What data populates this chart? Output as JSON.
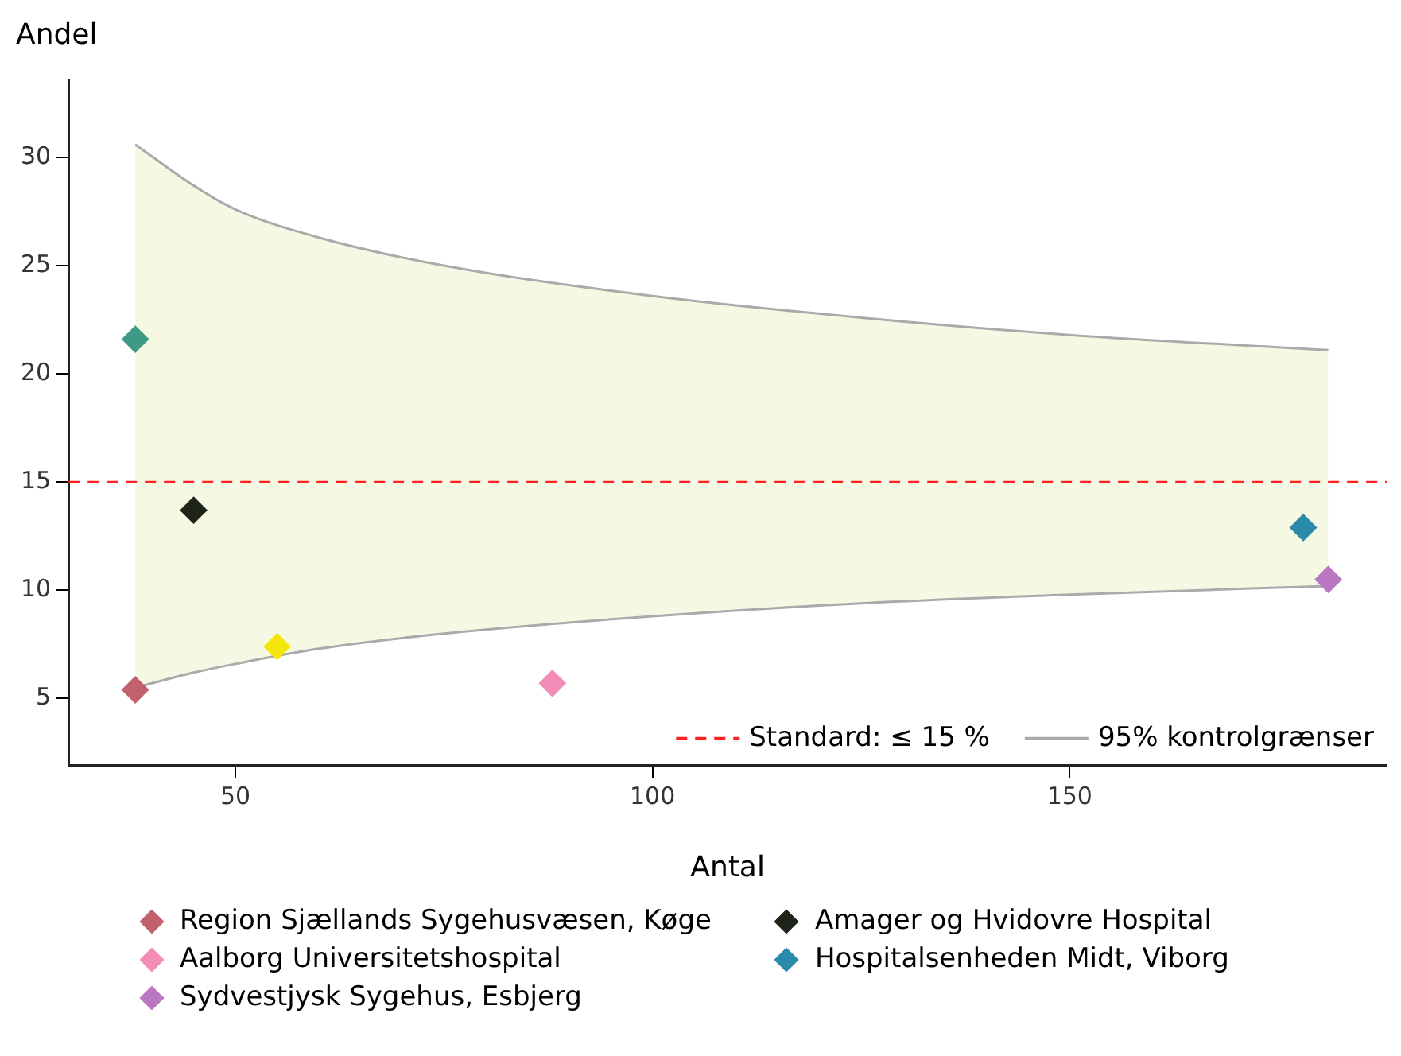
{
  "chart_data": {
    "type": "scatter",
    "xlabel": "Antal",
    "ylabel": "Andel",
    "xlim": [
      30,
      188
    ],
    "xticks": [
      50,
      100,
      150
    ],
    "ylim": [
      1.9,
      33.6
    ],
    "yticks": [
      5,
      10,
      15,
      20,
      25,
      30
    ],
    "grid": false,
    "legend": "bottom",
    "marker": "diamond",
    "ref_lines": [
      {
        "axis": "y",
        "value": 15,
        "label": "Standard: ≤ 15 %",
        "color": "#ff2020",
        "line_style": "dashed"
      }
    ],
    "series": [
      {
        "type": "line",
        "name": "95% kontrolgrænser",
        "color": "#aaaaaa",
        "marker": "none",
        "x": [
          38,
          45,
          50,
          60,
          75,
          100,
          125,
          150,
          181
        ],
        "values": [
          30.6,
          28.7,
          27.6,
          26.3,
          25.0,
          23.6,
          22.6,
          21.8,
          21.1
        ],
        "upper": [
          30.6,
          28.7,
          27.6,
          26.3,
          25.0,
          23.6,
          22.6,
          21.8,
          21.1
        ],
        "lower": [
          5.5,
          6.2,
          6.6,
          7.3,
          8.0,
          8.8,
          9.4,
          9.8,
          10.2
        ]
      },
      {
        "type": "line",
        "color": "#aaaaaa",
        "marker": "none",
        "x": [
          38,
          45,
          50,
          60,
          75,
          100,
          125,
          150,
          181
        ],
        "values": [
          5.5,
          6.2,
          6.6,
          7.3,
          8.0,
          8.8,
          9.4,
          9.8,
          10.2
        ]
      },
      {
        "color": "#3f9a85",
        "x": [
          38
        ],
        "values": [
          21.6
        ]
      },
      {
        "name": "Region Sjællands Sygehusvæsen, Køge",
        "color": "#c0616b",
        "x": [
          38
        ],
        "values": [
          5.4
        ]
      },
      {
        "name": "Amager og Hvidovre Hospital",
        "color": "#1e2418",
        "x": [
          45
        ],
        "values": [
          13.7
        ]
      },
      {
        "color": "#f5e50a",
        "x": [
          55
        ],
        "values": [
          7.4
        ]
      },
      {
        "name": "Aalborg Universitetshospital",
        "color": "#f48cb8",
        "x": [
          88
        ],
        "values": [
          5.7
        ]
      },
      {
        "name": "Hospitalsenheden Midt, Viborg",
        "color": "#2a8aaa",
        "x": [
          178
        ],
        "values": [
          12.9
        ]
      },
      {
        "name": "Sydvestjysk Sygehus, Esbjerg",
        "color": "#bb77c2",
        "x": [
          181
        ],
        "values": [
          10.5
        ]
      }
    ]
  }
}
